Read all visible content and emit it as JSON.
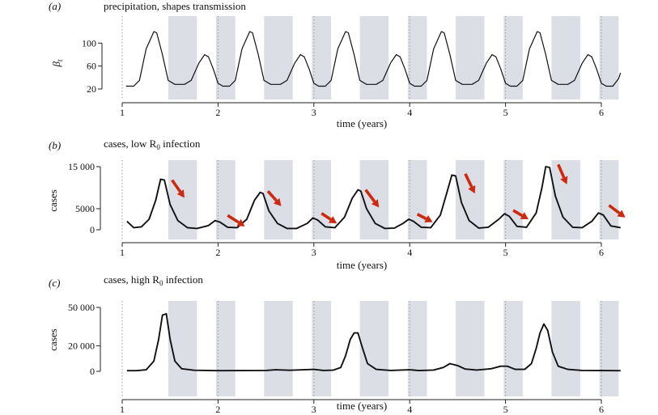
{
  "colors": {
    "shade": "#dcdee6",
    "line": "#111111",
    "arrow": "#cc2a10",
    "dotted": "#999999"
  },
  "chart_data": [
    {
      "type": "line",
      "panel_label": "(a)",
      "title": "precipitation, shapes transmission",
      "ylabel": "β",
      "ylabel_sub": "t",
      "xlabel": "time (years)",
      "xlim": [
        0.9,
        6.2
      ],
      "ylim": [
        20,
        130
      ],
      "xticks": [
        1,
        2,
        3,
        4,
        5,
        6
      ],
      "xtick_labels": [
        "1",
        "2",
        "3",
        "4",
        "5",
        "6"
      ],
      "yticks": [
        20,
        60,
        100
      ],
      "ytick_labels": [
        "20",
        "60",
        "100"
      ],
      "series": [
        {
          "values": [
            [
              1.04,
              25
            ],
            [
              1.12,
              25
            ],
            [
              1.18,
              35
            ],
            [
              1.25,
              90
            ],
            [
              1.33,
              120
            ],
            [
              1.36,
              118
            ],
            [
              1.42,
              80
            ],
            [
              1.48,
              35
            ],
            [
              1.55,
              28
            ],
            [
              1.65,
              28
            ],
            [
              1.72,
              35
            ],
            [
              1.8,
              65
            ],
            [
              1.86,
              80
            ],
            [
              1.9,
              76
            ],
            [
              1.95,
              55
            ],
            [
              2.0,
              30
            ],
            [
              2.05,
              25
            ],
            [
              2.12,
              25
            ],
            [
              2.18,
              35
            ],
            [
              2.25,
              90
            ],
            [
              2.33,
              120
            ],
            [
              2.36,
              118
            ],
            [
              2.42,
              80
            ],
            [
              2.48,
              35
            ],
            [
              2.55,
              28
            ],
            [
              2.65,
              28
            ],
            [
              2.72,
              35
            ],
            [
              2.8,
              65
            ],
            [
              2.86,
              80
            ],
            [
              2.9,
              76
            ],
            [
              2.95,
              55
            ],
            [
              3.0,
              30
            ],
            [
              3.05,
              25
            ],
            [
              3.12,
              25
            ],
            [
              3.18,
              35
            ],
            [
              3.25,
              90
            ],
            [
              3.33,
              120
            ],
            [
              3.36,
              118
            ],
            [
              3.42,
              80
            ],
            [
              3.48,
              35
            ],
            [
              3.55,
              28
            ],
            [
              3.65,
              28
            ],
            [
              3.72,
              35
            ],
            [
              3.8,
              65
            ],
            [
              3.86,
              80
            ],
            [
              3.9,
              76
            ],
            [
              3.95,
              55
            ],
            [
              4.0,
              30
            ],
            [
              4.05,
              25
            ],
            [
              4.12,
              25
            ],
            [
              4.18,
              35
            ],
            [
              4.25,
              90
            ],
            [
              4.33,
              120
            ],
            [
              4.36,
              118
            ],
            [
              4.42,
              80
            ],
            [
              4.48,
              35
            ],
            [
              4.55,
              28
            ],
            [
              4.65,
              28
            ],
            [
              4.72,
              35
            ],
            [
              4.8,
              65
            ],
            [
              4.86,
              80
            ],
            [
              4.9,
              76
            ],
            [
              4.95,
              55
            ],
            [
              5.0,
              30
            ],
            [
              5.05,
              25
            ],
            [
              5.12,
              25
            ],
            [
              5.18,
              35
            ],
            [
              5.25,
              90
            ],
            [
              5.33,
              120
            ],
            [
              5.36,
              118
            ],
            [
              5.42,
              80
            ],
            [
              5.48,
              35
            ],
            [
              5.55,
              28
            ],
            [
              5.65,
              28
            ],
            [
              5.72,
              35
            ],
            [
              5.8,
              65
            ],
            [
              5.86,
              80
            ],
            [
              5.9,
              76
            ],
            [
              5.95,
              55
            ],
            [
              6.0,
              30
            ],
            [
              6.05,
              25
            ],
            [
              6.12,
              25
            ],
            [
              6.18,
              38
            ],
            [
              6.2,
              48
            ]
          ]
        }
      ],
      "shaded_bands": [
        [
          1.48,
          1.78
        ],
        [
          1.98,
          2.18
        ],
        [
          2.48,
          2.78
        ],
        [
          2.98,
          3.18
        ],
        [
          3.48,
          3.78
        ],
        [
          3.98,
          4.18
        ],
        [
          4.48,
          4.78
        ],
        [
          4.98,
          5.18
        ],
        [
          5.48,
          5.78
        ],
        [
          5.98,
          6.18
        ]
      ]
    },
    {
      "type": "line",
      "panel_label": "(b)",
      "title": "cases, low R",
      "title_sub": "0",
      "title_after": " infection",
      "ylabel": "cases",
      "xlabel": "time (years)",
      "xlim": [
        0.9,
        6.2
      ],
      "ylim": [
        0,
        15000
      ],
      "xticks": [
        1,
        2,
        3,
        4,
        5,
        6
      ],
      "xtick_labels": [
        "1",
        "2",
        "3",
        "4",
        "5",
        "6"
      ],
      "yticks": [
        0,
        5000,
        15000
      ],
      "ytick_labels": [
        "0",
        "5000",
        "15 000"
      ],
      "series": [
        {
          "values": [
            [
              1.05,
              2000
            ],
            [
              1.12,
              500
            ],
            [
              1.2,
              700
            ],
            [
              1.28,
              2500
            ],
            [
              1.35,
              7000
            ],
            [
              1.4,
              12000
            ],
            [
              1.44,
              11800
            ],
            [
              1.5,
              6000
            ],
            [
              1.58,
              2200
            ],
            [
              1.68,
              500
            ],
            [
              1.78,
              300
            ],
            [
              1.9,
              1000
            ],
            [
              1.97,
              2200
            ],
            [
              2.02,
              1800
            ],
            [
              2.1,
              600
            ],
            [
              2.2,
              500
            ],
            [
              2.3,
              2500
            ],
            [
              2.38,
              7000
            ],
            [
              2.44,
              8900
            ],
            [
              2.47,
              8600
            ],
            [
              2.53,
              4500
            ],
            [
              2.62,
              1500
            ],
            [
              2.72,
              300
            ],
            [
              2.82,
              300
            ],
            [
              2.93,
              1500
            ],
            [
              2.99,
              2800
            ],
            [
              3.04,
              2300
            ],
            [
              3.12,
              700
            ],
            [
              3.22,
              500
            ],
            [
              3.32,
              3000
            ],
            [
              3.4,
              7500
            ],
            [
              3.46,
              9500
            ],
            [
              3.49,
              9200
            ],
            [
              3.55,
              5000
            ],
            [
              3.64,
              1500
            ],
            [
              3.74,
              300
            ],
            [
              3.84,
              400
            ],
            [
              3.93,
              1500
            ],
            [
              3.99,
              2500
            ],
            [
              4.04,
              2000
            ],
            [
              4.12,
              600
            ],
            [
              4.22,
              500
            ],
            [
              4.32,
              3500
            ],
            [
              4.39,
              9000
            ],
            [
              4.44,
              13000
            ],
            [
              4.48,
              12800
            ],
            [
              4.54,
              6500
            ],
            [
              4.62,
              2200
            ],
            [
              4.72,
              400
            ],
            [
              4.82,
              600
            ],
            [
              4.93,
              2500
            ],
            [
              4.99,
              3800
            ],
            [
              5.04,
              3200
            ],
            [
              5.12,
              800
            ],
            [
              5.22,
              600
            ],
            [
              5.32,
              4000
            ],
            [
              5.38,
              10000
            ],
            [
              5.42,
              15000
            ],
            [
              5.46,
              14800
            ],
            [
              5.52,
              8000
            ],
            [
              5.6,
              3000
            ],
            [
              5.7,
              600
            ],
            [
              5.8,
              500
            ],
            [
              5.9,
              2000
            ],
            [
              5.97,
              4000
            ],
            [
              6.02,
              3500
            ],
            [
              6.1,
              900
            ],
            [
              6.2,
              500
            ]
          ]
        }
      ],
      "arrows": [
        [
          [
            1.52,
            11800
          ],
          [
            1.65,
            7600
          ]
        ],
        [
          [
            2.1,
            3400
          ],
          [
            2.28,
            800
          ]
        ],
        [
          [
            2.52,
            9200
          ],
          [
            2.66,
            5600
          ]
        ],
        [
          [
            3.08,
            3900
          ],
          [
            3.24,
            1500
          ]
        ],
        [
          [
            3.54,
            9500
          ],
          [
            3.68,
            5300
          ]
        ],
        [
          [
            4.08,
            3700
          ],
          [
            4.24,
            1800
          ]
        ],
        [
          [
            4.58,
            13300
          ],
          [
            4.68,
            8600
          ]
        ],
        [
          [
            5.08,
            4600
          ],
          [
            5.24,
            2500
          ]
        ],
        [
          [
            5.55,
            15500
          ],
          [
            5.64,
            10800
          ]
        ],
        [
          [
            6.08,
            5800
          ],
          [
            6.25,
            2900
          ]
        ]
      ],
      "shaded_bands": [
        [
          1.48,
          1.78
        ],
        [
          1.98,
          2.18
        ],
        [
          2.48,
          2.78
        ],
        [
          2.98,
          3.18
        ],
        [
          3.48,
          3.78
        ],
        [
          3.98,
          4.18
        ],
        [
          4.48,
          4.78
        ],
        [
          4.98,
          5.18
        ],
        [
          5.48,
          5.78
        ],
        [
          5.98,
          6.18
        ]
      ]
    },
    {
      "type": "line",
      "panel_label": "(c)",
      "title": "cases, high R",
      "title_sub": "0",
      "title_after": " infection",
      "ylabel": "cases",
      "xlabel": "time (years)",
      "xlim": [
        0.9,
        6.2
      ],
      "ylim": [
        0,
        50000
      ],
      "xticks": [
        1,
        2,
        3,
        4,
        5,
        6
      ],
      "xtick_labels": [
        "1",
        "2",
        "3",
        "4",
        "5",
        "6"
      ],
      "yticks": [
        0,
        20000,
        50000
      ],
      "ytick_labels": [
        "0",
        "20 000",
        "50 000"
      ],
      "series": [
        {
          "values": [
            [
              1.05,
              500
            ],
            [
              1.15,
              500
            ],
            [
              1.25,
              1200
            ],
            [
              1.33,
              8000
            ],
            [
              1.38,
              25000
            ],
            [
              1.42,
              44000
            ],
            [
              1.46,
              45000
            ],
            [
              1.5,
              25000
            ],
            [
              1.55,
              8000
            ],
            [
              1.62,
              2000
            ],
            [
              1.75,
              800
            ],
            [
              2.0,
              500
            ],
            [
              2.5,
              700
            ],
            [
              2.6,
              1200
            ],
            [
              2.75,
              800
            ],
            [
              3.0,
              1500
            ],
            [
              3.1,
              700
            ],
            [
              3.2,
              900
            ],
            [
              3.28,
              3000
            ],
            [
              3.33,
              12000
            ],
            [
              3.38,
              25000
            ],
            [
              3.42,
              30000
            ],
            [
              3.46,
              30000
            ],
            [
              3.5,
              20000
            ],
            [
              3.56,
              6000
            ],
            [
              3.65,
              1500
            ],
            [
              3.8,
              700
            ],
            [
              4.0,
              1200
            ],
            [
              4.1,
              600
            ],
            [
              4.25,
              1000
            ],
            [
              4.35,
              3000
            ],
            [
              4.42,
              6000
            ],
            [
              4.5,
              4500
            ],
            [
              4.58,
              1800
            ],
            [
              4.7,
              1000
            ],
            [
              4.85,
              2000
            ],
            [
              4.95,
              4000
            ],
            [
              5.02,
              4000
            ],
            [
              5.1,
              1600
            ],
            [
              5.2,
              1500
            ],
            [
              5.27,
              6000
            ],
            [
              5.32,
              18000
            ],
            [
              5.36,
              30000
            ],
            [
              5.4,
              37000
            ],
            [
              5.44,
              32000
            ],
            [
              5.49,
              15000
            ],
            [
              5.55,
              4000
            ],
            [
              5.65,
              1500
            ],
            [
              5.8,
              700
            ],
            [
              6.0,
              600
            ],
            [
              6.2,
              500
            ]
          ]
        }
      ],
      "shaded_bands": [
        [
          1.48,
          1.78
        ],
        [
          1.98,
          2.18
        ],
        [
          2.48,
          2.78
        ],
        [
          2.98,
          3.18
        ],
        [
          3.48,
          3.78
        ],
        [
          3.98,
          4.18
        ],
        [
          4.48,
          4.78
        ],
        [
          4.98,
          5.18
        ],
        [
          5.48,
          5.78
        ],
        [
          5.98,
          6.18
        ]
      ]
    }
  ]
}
